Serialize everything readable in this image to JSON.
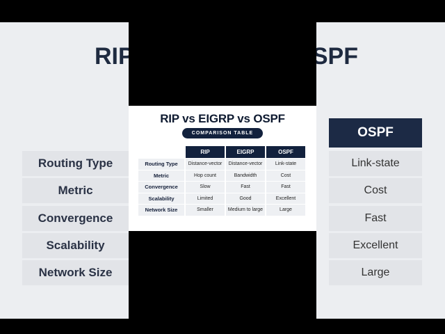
{
  "title": "RIP vs EIGRP vs OSPF",
  "subtitle": "COMPARISON TABLE",
  "columns": [
    "RIP",
    "EIGRP",
    "OSPF"
  ],
  "rows": [
    {
      "label": "Routing Type",
      "values": [
        "Distance-vector",
        "Distance-vector",
        "Link-state"
      ]
    },
    {
      "label": "Metric",
      "values": [
        "Hop count",
        "Bandwidth",
        "Cost"
      ]
    },
    {
      "label": "Convergence",
      "values": [
        "Slow",
        "Fast",
        "Fast"
      ]
    },
    {
      "label": "Scalability",
      "values": [
        "Limited",
        "Good",
        "Excellent"
      ]
    },
    {
      "label": "Network Size",
      "values": [
        "Smaller",
        "Medium to large",
        "Large"
      ]
    }
  ],
  "colors": {
    "navy": "#12213d",
    "row_bg": "#eef0f3"
  }
}
